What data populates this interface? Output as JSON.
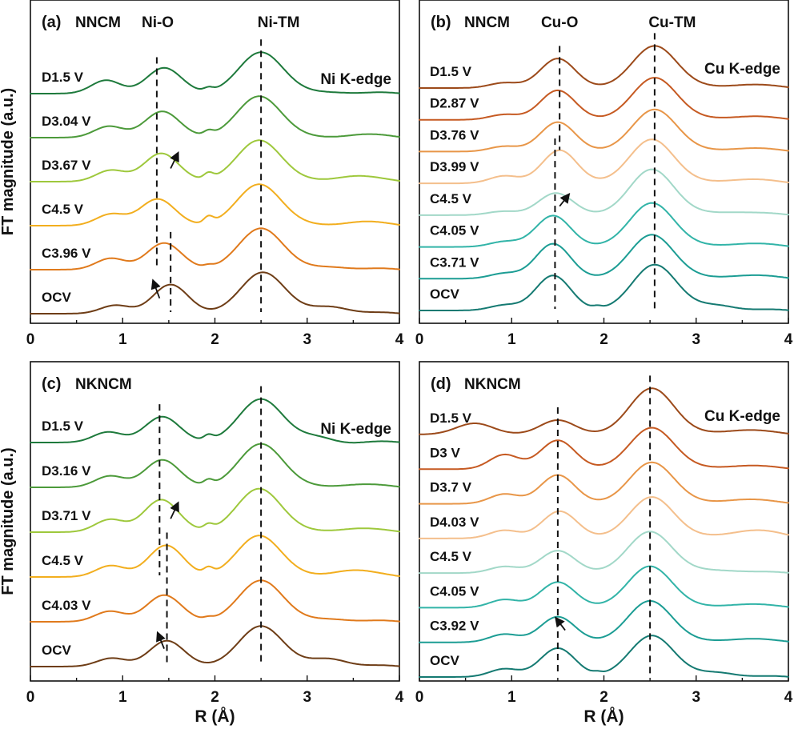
{
  "chart_data": [
    {
      "type": "line",
      "panel_label": "(a)",
      "material": "NNCM",
      "edge": "Ni K-edge",
      "xlabel": "",
      "ylabel": "FT magnitude (a.u.)",
      "xlim": [
        0,
        4
      ],
      "xticks": [
        "0",
        "1",
        "2",
        "3",
        "4"
      ],
      "peak_labels": [
        {
          "text": "Ni-O",
          "x": 1.38
        },
        {
          "text": "Ni-TM",
          "x": 2.5
        }
      ],
      "dashed_markers": [
        {
          "x": 1.37,
          "from_series": 0,
          "to_series": 4
        },
        {
          "x": 1.52,
          "from_series": 4,
          "to_series": 5
        },
        {
          "x": 2.5,
          "from_series": 0,
          "to_series": 5
        }
      ],
      "arrows": [
        {
          "x1": 1.52,
          "y1": 0.7,
          "x2": 1.6,
          "y2": 0.35,
          "between": [
            1,
            2
          ]
        },
        {
          "x1": 1.4,
          "y1": 0.65,
          "x2": 1.33,
          "y2": 0.25,
          "between": [
            4,
            5
          ]
        }
      ],
      "series": [
        {
          "name": "D1.5 V",
          "color": "#1e7a3c",
          "peaks": [
            {
              "x": 0.82,
              "a": 0.32,
              "w": 0.16
            },
            {
              "x": 1.45,
              "a": 0.62,
              "w": 0.19
            },
            {
              "x": 1.93,
              "a": 0.08,
              "w": 0.05
            },
            {
              "x": 2.5,
              "a": 1.0,
              "w": 0.24
            },
            {
              "x": 3.32,
              "a": 0.05,
              "w": 0.2
            }
          ]
        },
        {
          "name": "D3.04 V",
          "color": "#4c9a3a",
          "peaks": [
            {
              "x": 0.85,
              "a": 0.27,
              "w": 0.16
            },
            {
              "x": 1.43,
              "a": 0.63,
              "w": 0.19
            },
            {
              "x": 1.93,
              "a": 0.1,
              "w": 0.05
            },
            {
              "x": 2.48,
              "a": 1.0,
              "w": 0.24
            },
            {
              "x": 3.55,
              "a": 0.08,
              "w": 0.22
            }
          ]
        },
        {
          "name": "D3.67 V",
          "color": "#9ec83c",
          "peaks": [
            {
              "x": 0.87,
              "a": 0.27,
              "w": 0.16
            },
            {
              "x": 1.42,
              "a": 0.68,
              "w": 0.19
            },
            {
              "x": 1.93,
              "a": 0.14,
              "w": 0.05
            },
            {
              "x": 2.48,
              "a": 1.0,
              "w": 0.24
            },
            {
              "x": 3.5,
              "a": 0.15,
              "w": 0.22
            }
          ]
        },
        {
          "name": "C4.5 V",
          "color": "#f2ae1e",
          "peaks": [
            {
              "x": 0.87,
              "a": 0.27,
              "w": 0.16
            },
            {
              "x": 1.38,
              "a": 0.64,
              "w": 0.19
            },
            {
              "x": 1.93,
              "a": 0.16,
              "w": 0.05
            },
            {
              "x": 2.48,
              "a": 1.0,
              "w": 0.24
            },
            {
              "x": 3.55,
              "a": 0.1,
              "w": 0.22
            }
          ]
        },
        {
          "name": "C3.96 V",
          "color": "#e07a1c",
          "peaks": [
            {
              "x": 0.87,
              "a": 0.27,
              "w": 0.16
            },
            {
              "x": 1.45,
              "a": 0.64,
              "w": 0.19
            },
            {
              "x": 1.93,
              "a": 0.05,
              "w": 0.05
            },
            {
              "x": 2.5,
              "a": 1.0,
              "w": 0.24
            },
            {
              "x": 3.3,
              "a": 0.08,
              "w": 0.2
            }
          ]
        },
        {
          "name": "OCV",
          "color": "#6e3d16",
          "peaks": [
            {
              "x": 0.92,
              "a": 0.2,
              "w": 0.16
            },
            {
              "x": 1.52,
              "a": 0.7,
              "w": 0.19
            },
            {
              "x": 2.52,
              "a": 1.0,
              "w": 0.24
            },
            {
              "x": 3.27,
              "a": 0.18,
              "w": 0.2
            }
          ]
        }
      ]
    },
    {
      "type": "line",
      "panel_label": "(b)",
      "material": "NNCM",
      "edge": "Cu K-edge",
      "xlabel": "",
      "ylabel": "",
      "xlim": [
        0,
        4
      ],
      "xticks": [
        "0",
        "1",
        "2",
        "3",
        "4"
      ],
      "peak_labels": [
        {
          "text": "Cu-O",
          "x": 1.52
        },
        {
          "text": "Cu-TM",
          "x": 2.55
        }
      ],
      "dashed_markers": [
        {
          "x": 1.52,
          "from_series": 0,
          "to_series": 2
        },
        {
          "x": 1.47,
          "from_series": 3,
          "to_series": 7
        },
        {
          "x": 2.55,
          "from_series": 0,
          "to_series": 7
        }
      ],
      "arrows": [
        {
          "x1": 1.52,
          "y1": 0.72,
          "x2": 1.62,
          "y2": 0.35,
          "between": [
            3,
            4
          ]
        }
      ],
      "series": [
        {
          "name": "D1.5 V",
          "color": "#9c4a1a",
          "peaks": [
            {
              "x": 0.92,
              "a": 0.14,
              "w": 0.16
            },
            {
              "x": 1.5,
              "a": 0.8,
              "w": 0.19
            },
            {
              "x": 2.55,
              "a": 1.15,
              "w": 0.24
            },
            {
              "x": 3.5,
              "a": 0.1,
              "w": 0.25
            }
          ]
        },
        {
          "name": "D2.87 V",
          "color": "#c65a22",
          "peaks": [
            {
              "x": 0.92,
              "a": 0.14,
              "w": 0.16
            },
            {
              "x": 1.5,
              "a": 0.8,
              "w": 0.19
            },
            {
              "x": 2.55,
              "a": 1.15,
              "w": 0.24
            },
            {
              "x": 3.5,
              "a": 0.1,
              "w": 0.25
            }
          ]
        },
        {
          "name": "D3.76 V",
          "color": "#e89648",
          "peaks": [
            {
              "x": 0.92,
              "a": 0.14,
              "w": 0.16
            },
            {
              "x": 1.5,
              "a": 0.8,
              "w": 0.19
            },
            {
              "x": 2.55,
              "a": 1.15,
              "w": 0.24
            },
            {
              "x": 3.5,
              "a": 0.1,
              "w": 0.25
            }
          ]
        },
        {
          "name": "D3.99 V",
          "color": "#f4bf8c",
          "peaks": [
            {
              "x": 0.92,
              "a": 0.2,
              "w": 0.16
            },
            {
              "x": 1.52,
              "a": 0.9,
              "w": 0.19
            },
            {
              "x": 2.52,
              "a": 1.2,
              "w": 0.24
            },
            {
              "x": 3.5,
              "a": 0.12,
              "w": 0.25
            }
          ]
        },
        {
          "name": "C4.5 V",
          "color": "#a2d8c8",
          "peaks": [
            {
              "x": 0.9,
              "a": 0.1,
              "w": 0.16
            },
            {
              "x": 1.48,
              "a": 0.6,
              "w": 0.19
            },
            {
              "x": 2.52,
              "a": 1.25,
              "w": 0.24
            },
            {
              "x": 3.4,
              "a": 0.1,
              "w": 0.25
            }
          ]
        },
        {
          "name": "C4.05 V",
          "color": "#32b4a8",
          "peaks": [
            {
              "x": 0.92,
              "a": 0.14,
              "w": 0.16
            },
            {
              "x": 1.45,
              "a": 0.85,
              "w": 0.19
            },
            {
              "x": 2.52,
              "a": 1.2,
              "w": 0.24
            },
            {
              "x": 3.5,
              "a": 0.1,
              "w": 0.25
            }
          ]
        },
        {
          "name": "C3.71 V",
          "color": "#1c9d94",
          "peaks": [
            {
              "x": 0.92,
              "a": 0.14,
              "w": 0.16
            },
            {
              "x": 1.45,
              "a": 0.95,
              "w": 0.19
            },
            {
              "x": 2.52,
              "a": 1.2,
              "w": 0.24
            },
            {
              "x": 3.5,
              "a": 0.1,
              "w": 0.25
            }
          ]
        },
        {
          "name": "OCV",
          "color": "#157a72",
          "peaks": [
            {
              "x": 0.92,
              "a": 0.14,
              "w": 0.16
            },
            {
              "x": 1.45,
              "a": 0.95,
              "w": 0.19
            },
            {
              "x": 1.93,
              "a": 0.06,
              "w": 0.05
            },
            {
              "x": 2.55,
              "a": 1.25,
              "w": 0.24
            },
            {
              "x": 3.25,
              "a": 0.15,
              "w": 0.2
            }
          ]
        }
      ]
    },
    {
      "type": "line",
      "panel_label": "(c)",
      "material": "NKNCM",
      "edge": "Ni K-edge",
      "xlabel": "R (Å)",
      "ylabel": "FT magnitude (a.u.)",
      "xlim": [
        0,
        4
      ],
      "xticks": [
        "0",
        "1",
        "2",
        "3",
        "4"
      ],
      "peak_labels": [],
      "dashed_markers": [
        {
          "x": 1.4,
          "from_series": 0,
          "to_series": 3
        },
        {
          "x": 1.48,
          "from_series": 3,
          "to_series": 5
        },
        {
          "x": 2.5,
          "from_series": 0,
          "to_series": 5
        }
      ],
      "arrows": [
        {
          "x1": 1.52,
          "y1": 0.7,
          "x2": 1.6,
          "y2": 0.35,
          "between": [
            1,
            2
          ]
        },
        {
          "x1": 1.45,
          "y1": 0.6,
          "x2": 1.38,
          "y2": 0.25,
          "between": [
            4,
            5
          ]
        }
      ],
      "series": [
        {
          "name": "D1.5 V",
          "color": "#1e7a3c",
          "peaks": [
            {
              "x": 0.84,
              "a": 0.25,
              "w": 0.16
            },
            {
              "x": 1.43,
              "a": 0.62,
              "w": 0.19
            },
            {
              "x": 1.93,
              "a": 0.12,
              "w": 0.05
            },
            {
              "x": 2.5,
              "a": 1.05,
              "w": 0.24
            },
            {
              "x": 3.12,
              "a": 0.12,
              "w": 0.18
            }
          ]
        },
        {
          "name": "D3.16 V",
          "color": "#4c9a3a",
          "peaks": [
            {
              "x": 0.86,
              "a": 0.27,
              "w": 0.16
            },
            {
              "x": 1.43,
              "a": 0.66,
              "w": 0.19
            },
            {
              "x": 1.93,
              "a": 0.12,
              "w": 0.05
            },
            {
              "x": 2.5,
              "a": 1.05,
              "w": 0.24
            },
            {
              "x": 3.5,
              "a": 0.08,
              "w": 0.22
            }
          ]
        },
        {
          "name": "D3.71 V",
          "color": "#9ec83c",
          "peaks": [
            {
              "x": 0.86,
              "a": 0.3,
              "w": 0.16
            },
            {
              "x": 1.42,
              "a": 0.78,
              "w": 0.19
            },
            {
              "x": 1.93,
              "a": 0.12,
              "w": 0.05
            },
            {
              "x": 2.48,
              "a": 1.05,
              "w": 0.24
            },
            {
              "x": 3.5,
              "a": 0.1,
              "w": 0.22
            }
          ]
        },
        {
          "name": "C4.5 V",
          "color": "#f2ae1e",
          "peaks": [
            {
              "x": 0.87,
              "a": 0.27,
              "w": 0.16
            },
            {
              "x": 1.47,
              "a": 0.76,
              "w": 0.19
            },
            {
              "x": 1.93,
              "a": 0.14,
              "w": 0.05
            },
            {
              "x": 2.48,
              "a": 1.0,
              "w": 0.24
            },
            {
              "x": 3.48,
              "a": 0.18,
              "w": 0.22
            }
          ]
        },
        {
          "name": "C4.03 V",
          "color": "#e07a1c",
          "peaks": [
            {
              "x": 0.86,
              "a": 0.25,
              "w": 0.16
            },
            {
              "x": 1.45,
              "a": 0.64,
              "w": 0.19
            },
            {
              "x": 1.93,
              "a": 0.05,
              "w": 0.05
            },
            {
              "x": 2.5,
              "a": 1.0,
              "w": 0.24
            },
            {
              "x": 3.3,
              "a": 0.08,
              "w": 0.2
            }
          ]
        },
        {
          "name": "OCV",
          "color": "#6e3d16",
          "peaks": [
            {
              "x": 0.88,
              "a": 0.2,
              "w": 0.16
            },
            {
              "x": 1.48,
              "a": 0.62,
              "w": 0.19
            },
            {
              "x": 2.5,
              "a": 0.98,
              "w": 0.24
            },
            {
              "x": 3.25,
              "a": 0.2,
              "w": 0.2
            }
          ]
        }
      ]
    },
    {
      "type": "line",
      "panel_label": "(d)",
      "material": "NKNCM",
      "edge": "Cu K-edge",
      "xlabel": "R (Å)",
      "ylabel": "",
      "xlim": [
        0,
        4
      ],
      "xticks": [
        "0",
        "1",
        "2",
        "3",
        "4"
      ],
      "peak_labels": [],
      "dashed_markers": [
        {
          "x": 1.5,
          "from_series": 0,
          "to_series": 7
        },
        {
          "x": 2.5,
          "from_series": 0,
          "to_series": 7
        }
      ],
      "arrows": [
        {
          "x1": 1.58,
          "y1": 0.65,
          "x2": 1.48,
          "y2": 0.3,
          "between": [
            5,
            6
          ]
        }
      ],
      "series": [
        {
          "name": "D1.5 V",
          "color": "#9c4a1a",
          "peaks": [
            {
              "x": 0.6,
              "a": 0.35,
              "w": 0.2
            },
            {
              "x": 1.5,
              "a": 0.45,
              "w": 0.19
            },
            {
              "x": 2.52,
              "a": 1.45,
              "w": 0.24
            },
            {
              "x": 3.5,
              "a": 0.15,
              "w": 0.25
            }
          ]
        },
        {
          "name": "D3 V",
          "color": "#c65a22",
          "peaks": [
            {
              "x": 0.92,
              "a": 0.45,
              "w": 0.16
            },
            {
              "x": 1.5,
              "a": 0.9,
              "w": 0.19
            },
            {
              "x": 2.52,
              "a": 1.3,
              "w": 0.24
            },
            {
              "x": 3.5,
              "a": 0.12,
              "w": 0.25
            }
          ]
        },
        {
          "name": "D3.7 V",
          "color": "#e89648",
          "peaks": [
            {
              "x": 0.92,
              "a": 0.3,
              "w": 0.16
            },
            {
              "x": 1.5,
              "a": 0.9,
              "w": 0.19
            },
            {
              "x": 2.52,
              "a": 1.3,
              "w": 0.24
            },
            {
              "x": 3.5,
              "a": 0.15,
              "w": 0.25
            }
          ]
        },
        {
          "name": "D4.03 V",
          "color": "#f4bf8c",
          "peaks": [
            {
              "x": 0.92,
              "a": 0.25,
              "w": 0.16
            },
            {
              "x": 1.52,
              "a": 0.85,
              "w": 0.19
            },
            {
              "x": 2.52,
              "a": 1.3,
              "w": 0.24
            },
            {
              "x": 3.6,
              "a": 0.25,
              "w": 0.3
            }
          ]
        },
        {
          "name": "C4.5 V",
          "color": "#a2d8c8",
          "peaks": [
            {
              "x": 0.92,
              "a": 0.2,
              "w": 0.16
            },
            {
              "x": 1.5,
              "a": 0.7,
              "w": 0.19
            },
            {
              "x": 2.5,
              "a": 1.3,
              "w": 0.24
            },
            {
              "x": 3.3,
              "a": 0.1,
              "w": 0.25
            }
          ]
        },
        {
          "name": "C4.05 V",
          "color": "#32b4a8",
          "peaks": [
            {
              "x": 0.92,
              "a": 0.25,
              "w": 0.16
            },
            {
              "x": 1.5,
              "a": 0.8,
              "w": 0.19
            },
            {
              "x": 2.5,
              "a": 1.3,
              "w": 0.24
            },
            {
              "x": 3.5,
              "a": 0.12,
              "w": 0.25
            }
          ]
        },
        {
          "name": "C3.92 V",
          "color": "#1c9d94",
          "peaks": [
            {
              "x": 0.92,
              "a": 0.25,
              "w": 0.16
            },
            {
              "x": 1.5,
              "a": 0.8,
              "w": 0.19
            },
            {
              "x": 2.5,
              "a": 1.3,
              "w": 0.24
            },
            {
              "x": 3.5,
              "a": 0.12,
              "w": 0.25
            }
          ]
        },
        {
          "name": "OCV",
          "color": "#157a72",
          "peaks": [
            {
              "x": 0.92,
              "a": 0.25,
              "w": 0.16
            },
            {
              "x": 1.5,
              "a": 0.9,
              "w": 0.19
            },
            {
              "x": 1.93,
              "a": 0.06,
              "w": 0.05
            },
            {
              "x": 2.52,
              "a": 1.3,
              "w": 0.24
            },
            {
              "x": 3.25,
              "a": 0.15,
              "w": 0.2
            }
          ]
        }
      ]
    }
  ]
}
